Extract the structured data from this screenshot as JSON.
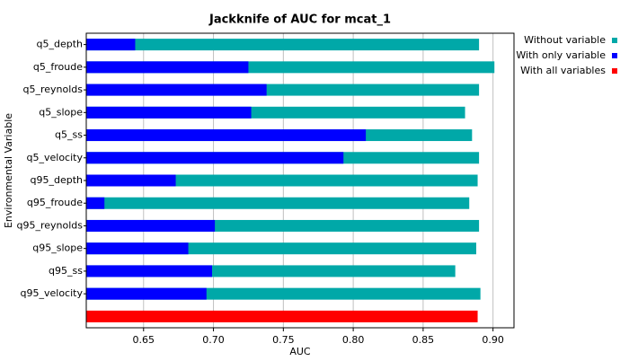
{
  "chart_data": {
    "type": "hbar",
    "title": "Jackknife of AUC for mcat_1",
    "x_label": "AUC",
    "y_label": "Environmental Variable",
    "categories": [
      "q5_depth",
      "q5_froude",
      "q5_reynolds",
      "q5_slope",
      "q5_ss",
      "q5_velocity",
      "q95_depth",
      "q95_froude",
      "q95_reynolds",
      "q95_slope",
      "q95_ss",
      "q95_velocity",
      null
    ],
    "series": [
      {
        "name": "Without variable",
        "color": "#00a8a8",
        "values": [
          0.89,
          0.901,
          0.89,
          0.88,
          0.885,
          0.89,
          0.889,
          0.883,
          0.89,
          0.888,
          0.873,
          0.891,
          null
        ]
      },
      {
        "name": "With only variable",
        "color": "#0000ff",
        "values": [
          0.644,
          0.725,
          0.738,
          0.727,
          0.809,
          0.793,
          0.673,
          0.622,
          0.701,
          0.682,
          0.699,
          0.695,
          null
        ]
      },
      {
        "name": "With all variables",
        "color": "#ff0000",
        "values": [
          null,
          null,
          null,
          null,
          null,
          null,
          null,
          null,
          null,
          null,
          null,
          null,
          0.889
        ]
      }
    ],
    "xlim": [
      0.609,
      0.915
    ],
    "xticks": [
      0.65,
      {
        "value": 0.7,
        "label": "0.70"
      },
      0.75,
      {
        "value": 0.8,
        "label": "0.80"
      },
      0.85,
      {
        "value": 0.9,
        "label": "0.90"
      }
    ],
    "grid": true,
    "legend": "right"
  }
}
